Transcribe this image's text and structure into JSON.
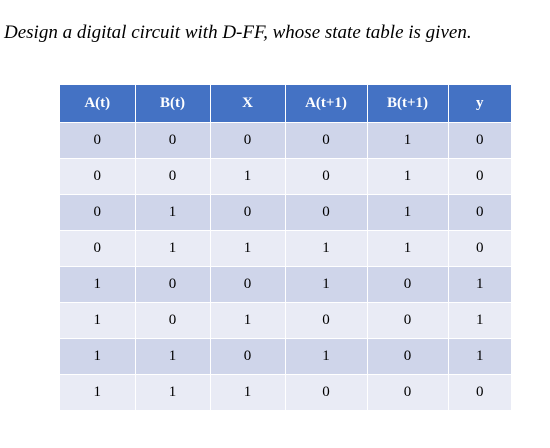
{
  "title": "Design a digital circuit with D-FF, whose state table is given.",
  "table": {
    "headers": [
      "A(t)",
      "B(t)",
      "X",
      "A(t+1)",
      "B(t+1)",
      "y"
    ],
    "rows": [
      [
        "0",
        "0",
        "0",
        "0",
        "1",
        "0"
      ],
      [
        "0",
        "0",
        "1",
        "0",
        "1",
        "0"
      ],
      [
        "0",
        "1",
        "0",
        "0",
        "1",
        "0"
      ],
      [
        "0",
        "1",
        "1",
        "1",
        "1",
        "0"
      ],
      [
        "1",
        "0",
        "0",
        "1",
        "0",
        "1"
      ],
      [
        "1",
        "0",
        "1",
        "0",
        "0",
        "1"
      ],
      [
        "1",
        "1",
        "0",
        "1",
        "0",
        "1"
      ],
      [
        "1",
        "1",
        "1",
        "0",
        "0",
        "0"
      ]
    ],
    "header_color": "#4472c4",
    "row_color_odd": "#cfd5ea",
    "row_color_even": "#e9ebf5"
  }
}
